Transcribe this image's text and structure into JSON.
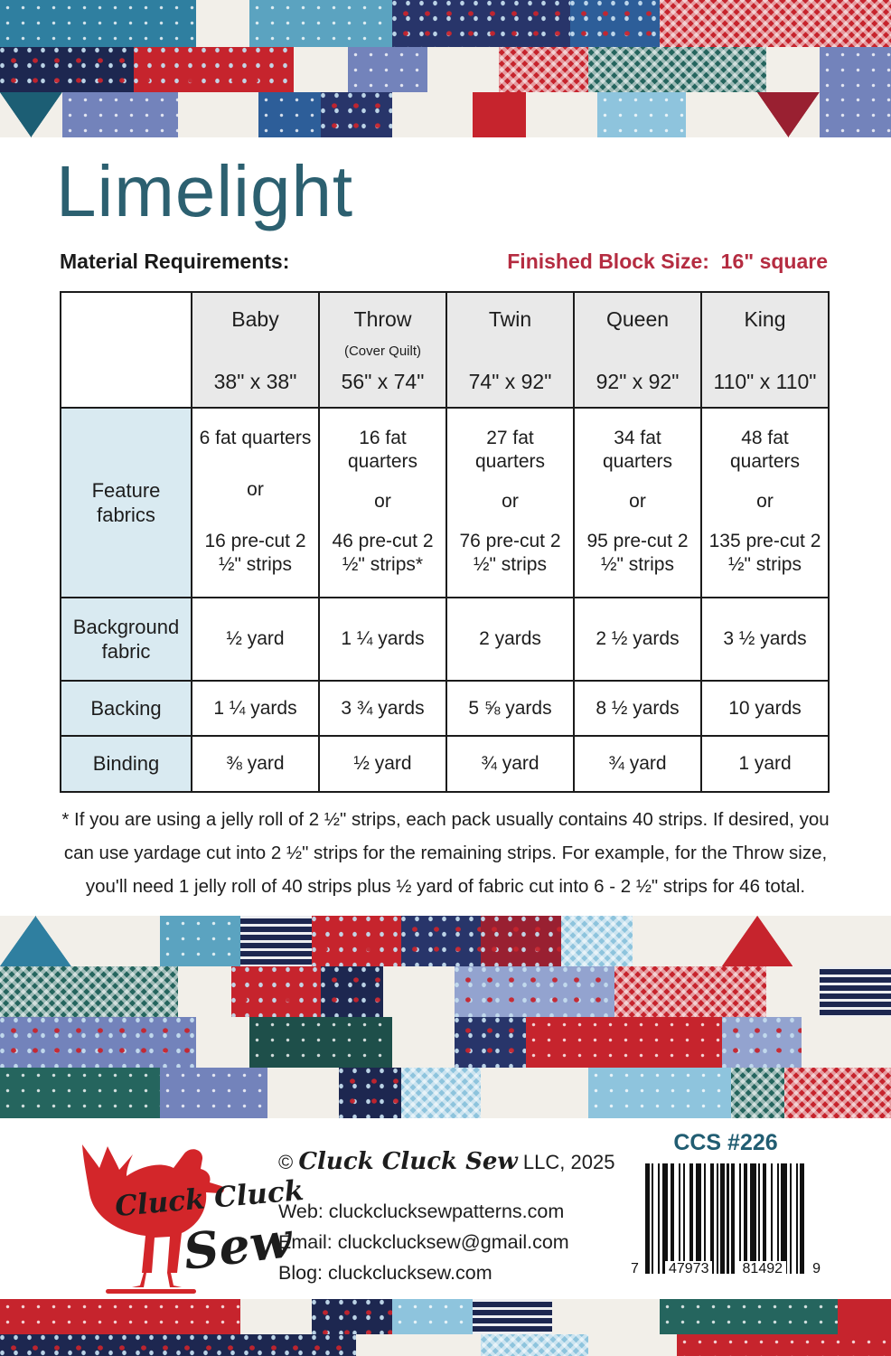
{
  "page": {
    "title": "Limelight"
  },
  "header": {
    "material_requirements": "Material Requirements:",
    "finished_block_size": "Finished Block Size:  16\" square"
  },
  "table": {
    "columns": [
      {
        "name": "Baby",
        "subtitle": "",
        "size": "38\" x 38\""
      },
      {
        "name": "Throw",
        "subtitle": "(Cover Quilt)",
        "size": "56\" x 74\""
      },
      {
        "name": "Twin",
        "subtitle": "",
        "size": "74\" x 92\""
      },
      {
        "name": "Queen",
        "subtitle": "",
        "size": "92\" x 92\""
      },
      {
        "name": "King",
        "subtitle": "",
        "size": "110\" x 110\""
      }
    ],
    "feature_row": {
      "label": "Feature fabrics",
      "cells": [
        {
          "fq": "6 fat quarters",
          "or": "or",
          "precut": "16 pre-cut 2 ½\" strips"
        },
        {
          "fq": "16 fat quarters",
          "or": "or",
          "precut": "46 pre-cut 2 ½\" strips*"
        },
        {
          "fq": "27 fat quarters",
          "or": "or",
          "precut": "76 pre-cut 2 ½\" strips"
        },
        {
          "fq": "34 fat quarters",
          "or": "or",
          "precut": "95 pre-cut 2 ½\" strips"
        },
        {
          "fq": "48 fat quarters",
          "or": "or",
          "precut": "135 pre-cut 2 ½\" strips"
        }
      ]
    },
    "simple_rows": [
      {
        "label": "Background fabric",
        "cells": [
          "½ yard",
          "1 ¼ yards",
          "2 yards",
          "2 ½ yards",
          "3 ½ yards"
        ]
      },
      {
        "label": "Backing",
        "cells": [
          "1 ¼ yards",
          "3 ¾ yards",
          "5 ⅝ yards",
          "8 ½ yards",
          "10 yards"
        ]
      },
      {
        "label": "Binding",
        "cells": [
          "⅜ yard",
          "½ yard",
          "¾ yard",
          "¾ yard",
          "1 yard"
        ]
      }
    ]
  },
  "footnote": {
    "lines": [
      "* If you are using a jelly roll of 2 ½\" strips, each pack usually contains 40 strips. If desired, you",
      "can use yardage cut into 2 ½\" strips for the remaining strips. For example, for the Throw size,",
      "you'll need 1 jelly roll of 40 strips plus ½ yard of fabric cut into 6 - 2 ½\" strips for 46 total."
    ]
  },
  "footer": {
    "copyright_prefix": "©",
    "company_script": "Cluck Cluck Sew",
    "copyright_suffix": "LLC, 2025",
    "logo_line1": "Cluck Cluck",
    "logo_line2": "Sew",
    "web_label": "Web:",
    "web": "cluckclucksewpatterns.com",
    "email_label": "Email:",
    "email": "cluckclucksew@gmail.com",
    "blog_label": "Blog:",
    "blog": "cluckclucksew.com",
    "ccs_number": "CCS #226",
    "barcode": {
      "first": "7",
      "group1": "47973",
      "group2": "81492",
      "last": "9"
    }
  },
  "colors": {
    "title_teal": "#2c6070",
    "accent_red": "#b52c41",
    "ccs_teal": "#215d72",
    "logo_red": "#d3262a",
    "table_header_bg": "#e9e9e9",
    "table_label_bg": "#d9eaf1",
    "quilt": {
      "white": "#f2efe9",
      "teal": "#2f7fa0",
      "tealLight": "#5ba3c0",
      "tealDark": "#1c5e74",
      "navy": "#28356a",
      "navyDark": "#1d2750",
      "blue": "#2d5e99",
      "periwinkle": "#7383bb",
      "periLight": "#93a3cf",
      "ltBlue": "#8ec4dd",
      "red": "#c6242d",
      "redDark": "#992031",
      "greenTeal": "#25655e",
      "greenDark": "#1e4f4a"
    }
  }
}
